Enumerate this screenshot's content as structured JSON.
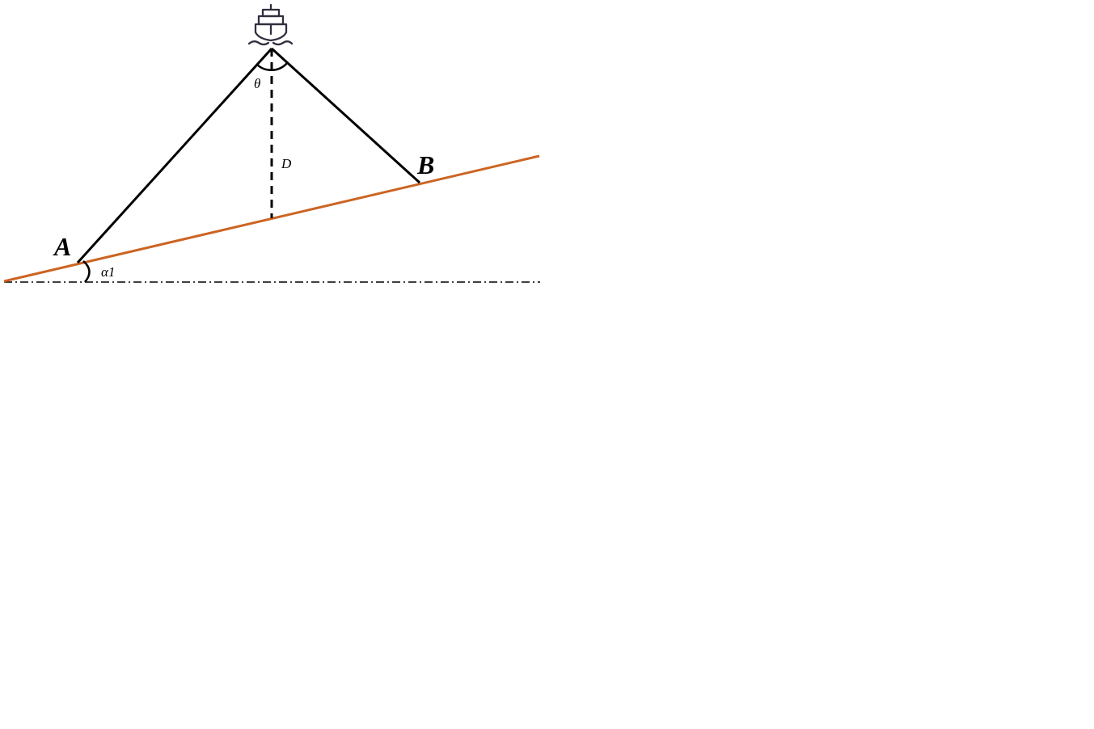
{
  "labels": {
    "point_a": "A",
    "point_b": "B",
    "angle_theta": "θ",
    "depth": "D",
    "slope_angle": "α1"
  },
  "icons": {
    "vessel": "ship-icon"
  },
  "colors": {
    "seabed": "#cc6422",
    "beam": "#000000",
    "horizontal_reference": "#000000",
    "ship": "#2f2f3f"
  }
}
